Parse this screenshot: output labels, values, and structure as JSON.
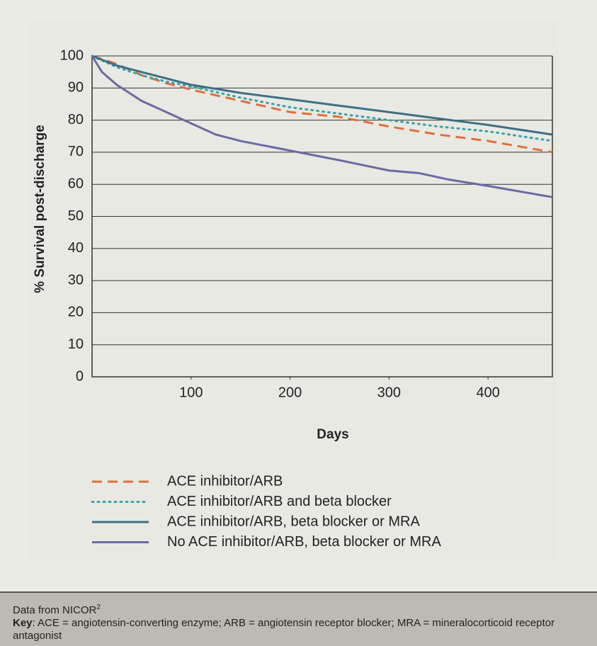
{
  "chart_data": {
    "type": "line",
    "y_label": "% Survival post-discharge",
    "x_label": "Days",
    "xlim": [
      0,
      465
    ],
    "xticks": [
      100,
      200,
      300,
      400
    ],
    "ylim": [
      0,
      100
    ],
    "yticks": [
      0,
      10,
      20,
      30,
      40,
      50,
      60,
      70,
      80,
      90,
      100
    ],
    "grid": true,
    "series": [
      {
        "name": "ACE inhibitor/ARB",
        "color": "#e0703e",
        "style": "dashed",
        "x": [
          0,
          25,
          50,
          75,
          100,
          150,
          200,
          250,
          300,
          350,
          400,
          465
        ],
        "values": [
          100,
          97.5,
          94,
          91.5,
          89.5,
          86,
          82.5,
          81,
          78,
          75.5,
          73.5,
          70
        ]
      },
      {
        "name": "ACE inhibitor/ARB and beta blocker",
        "color": "#3aa3a8",
        "style": "dotted",
        "x": [
          0,
          25,
          50,
          75,
          100,
          150,
          200,
          250,
          300,
          350,
          400,
          465
        ],
        "values": [
          100,
          96.5,
          94,
          92,
          90.5,
          87,
          84,
          82,
          80,
          78,
          76.5,
          73.5
        ]
      },
      {
        "name": "ACE inhibitor/ARB, beta blocker or MRA",
        "color": "#3d6f87",
        "style": "solid",
        "x": [
          0,
          25,
          50,
          75,
          100,
          150,
          200,
          250,
          300,
          350,
          400,
          465
        ],
        "values": [
          100,
          97,
          95,
          93,
          91,
          88.5,
          86.5,
          84.5,
          82.5,
          80.5,
          78.5,
          75.5
        ]
      },
      {
        "name": "No ACE inhibitor/ARB, beta blocker or MRA",
        "color": "#6b6aa6",
        "style": "solid",
        "x": [
          0,
          10,
          25,
          50,
          75,
          100,
          125,
          150,
          200,
          250,
          300,
          330,
          360,
          400,
          465
        ],
        "values": [
          100,
          95,
          91,
          86,
          82.5,
          79,
          75.5,
          73.5,
          70.5,
          67.5,
          64.3,
          63.5,
          61.5,
          59.5,
          56
        ]
      }
    ],
    "note_source": "Data from NICOR",
    "note_ref": "2",
    "key_label": "Key",
    "key_text": ": ACE = angiotensin-converting enzyme; ARB = angiotensin receptor blocker; MRA = mineralocorticoid receptor antagonist"
  }
}
